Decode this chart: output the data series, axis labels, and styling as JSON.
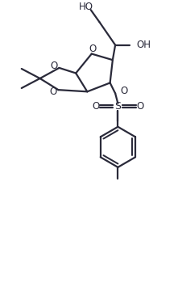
{
  "bg_color": "#ffffff",
  "line_color": "#2a2a3a",
  "lw": 1.6,
  "fs": 8.5,
  "figsize": [
    2.21,
    3.5
  ],
  "dpi": 100,
  "xlim": [
    0,
    10
  ],
  "ylim": [
    0,
    16
  ]
}
